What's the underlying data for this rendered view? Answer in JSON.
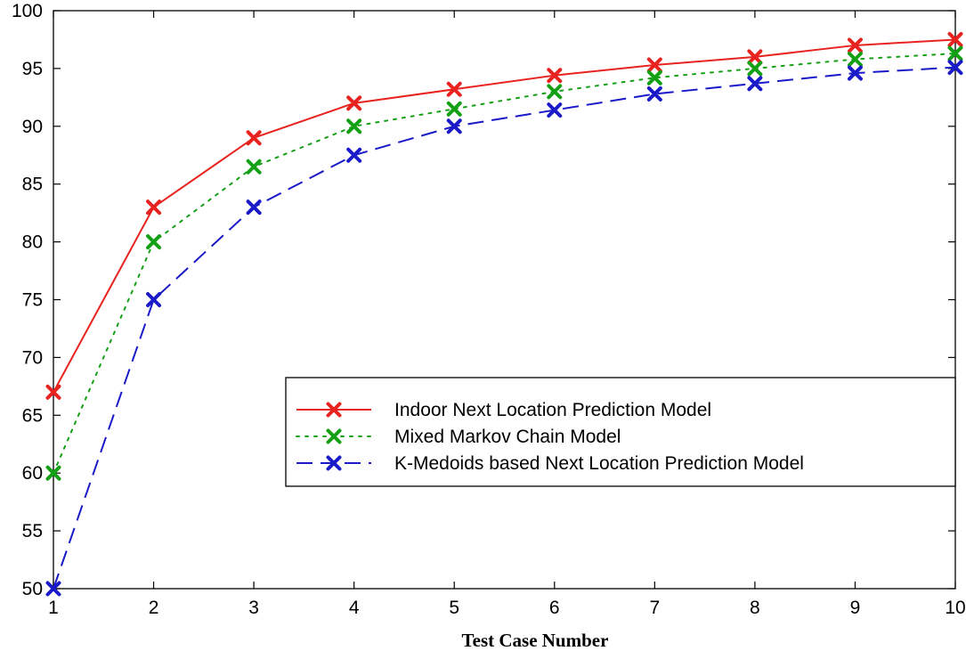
{
  "chart_data": {
    "type": "line",
    "title": "",
    "xlabel": "Test Case Number",
    "ylabel": "",
    "x": [
      1,
      2,
      3,
      4,
      5,
      6,
      7,
      8,
      9,
      10
    ],
    "xlim": [
      1,
      10
    ],
    "ylim": [
      50,
      100
    ],
    "xticks": [
      1,
      2,
      3,
      4,
      5,
      6,
      7,
      8,
      9,
      10
    ],
    "yticks": [
      50,
      55,
      60,
      65,
      70,
      75,
      80,
      85,
      90,
      95,
      100
    ],
    "grid": false,
    "legend_position": "lower-right",
    "series": [
      {
        "name": "Indoor Next Location Prediction Model",
        "values": [
          67,
          83,
          89,
          92,
          93.2,
          94.4,
          95.3,
          96,
          97,
          97.5
        ],
        "color": "#e8231f",
        "line_style": "solid",
        "marker": "x"
      },
      {
        "name": "Mixed Markov Chain Model",
        "values": [
          60,
          80,
          86.5,
          90,
          91.5,
          93,
          94.2,
          95,
          95.8,
          96.3
        ],
        "color": "#14a014",
        "line_style": "dotted",
        "marker": "x"
      },
      {
        "name": "K-Medoids based Next Location Prediction Model",
        "values": [
          50,
          75,
          83,
          87.5,
          90,
          91.4,
          92.8,
          93.7,
          94.6,
          95.1
        ],
        "color": "#1a1ac8",
        "line_style": "dashed",
        "marker": "x"
      }
    ]
  }
}
